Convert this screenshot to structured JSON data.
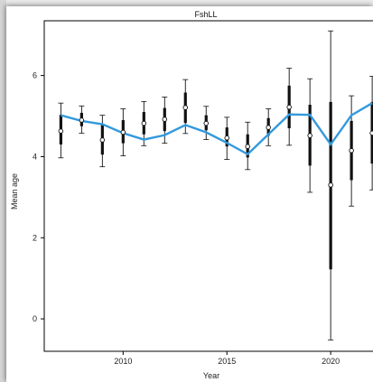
{
  "chart_data": {
    "type": "line",
    "title": "FshLL",
    "xlabel": "Year",
    "ylabel": "Mean age",
    "xlim": [
      2006.2,
      2022.3
    ],
    "ylim": [
      -0.8,
      7.35
    ],
    "x_ticks": [
      2010,
      2015,
      2020
    ],
    "y_ticks": [
      0,
      2,
      4,
      6
    ],
    "grid": false,
    "colors": {
      "predicted": "#3399dd",
      "observed": "#111111"
    },
    "series": [
      {
        "type": "line",
        "x": [
          2007,
          2008,
          2009,
          2010,
          2011,
          2012,
          2013,
          2014,
          2015,
          2016,
          2017,
          2018,
          2019,
          2020,
          2021,
          2022
        ],
        "values": [
          5.02,
          4.88,
          4.8,
          4.58,
          4.42,
          4.53,
          4.78,
          4.6,
          4.34,
          4.06,
          4.55,
          5.04,
          5.03,
          4.3,
          5.02,
          5.32
        ]
      },
      {
        "type": "observed",
        "x": [
          2007,
          2008,
          2009,
          2010,
          2011,
          2012,
          2013,
          2014,
          2015,
          2016,
          2017,
          2018,
          2019,
          2020,
          2021,
          2022
        ],
        "values": [
          4.63,
          4.9,
          4.41,
          4.6,
          4.82,
          4.92,
          5.21,
          4.82,
          4.46,
          4.25,
          4.72,
          5.22,
          4.52,
          3.3,
          4.15,
          4.58
        ],
        "ci_inner": [
          [
            4.3,
            5.03
          ],
          [
            4.75,
            5.08
          ],
          [
            4.05,
            4.78
          ],
          [
            4.33,
            4.9
          ],
          [
            4.55,
            5.1
          ],
          [
            4.63,
            5.2
          ],
          [
            4.83,
            5.58
          ],
          [
            4.65,
            5.02
          ],
          [
            4.25,
            4.72
          ],
          [
            3.98,
            4.55
          ],
          [
            4.52,
            4.95
          ],
          [
            4.7,
            5.75
          ],
          [
            3.78,
            5.28
          ],
          [
            1.22,
            5.35
          ],
          [
            3.42,
            4.88
          ],
          [
            3.83,
            5.35
          ]
        ],
        "ci_outer": [
          [
            3.97,
            5.32
          ],
          [
            4.58,
            5.25
          ],
          [
            3.75,
            5.02
          ],
          [
            4.02,
            5.18
          ],
          [
            4.27,
            5.36
          ],
          [
            4.33,
            5.47
          ],
          [
            4.57,
            5.9
          ],
          [
            4.42,
            5.24
          ],
          [
            3.93,
            4.97
          ],
          [
            3.68,
            4.85
          ],
          [
            4.27,
            5.18
          ],
          [
            4.28,
            6.18
          ],
          [
            3.12,
            5.92
          ],
          [
            -0.52,
            7.1
          ],
          [
            2.78,
            5.5
          ],
          [
            3.18,
            5.98
          ]
        ]
      }
    ]
  }
}
